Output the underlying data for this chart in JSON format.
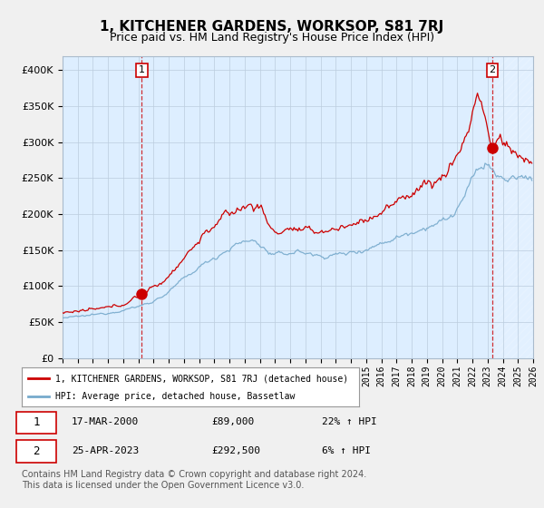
{
  "title": "1, KITCHENER GARDENS, WORKSOP, S81 7RJ",
  "subtitle": "Price paid vs. HM Land Registry's House Price Index (HPI)",
  "ylim": [
    0,
    420000
  ],
  "xlim_start": 1995.0,
  "xlim_end": 2026.0,
  "red_line_color": "#cc0000",
  "blue_line_color": "#77aacc",
  "grid_color": "#bbccdd",
  "background_color": "#f0f0f0",
  "plot_bg_color": "#ddeeff",
  "legend_label_red": "1, KITCHENER GARDENS, WORKSOP, S81 7RJ (detached house)",
  "legend_label_blue": "HPI: Average price, detached house, Bassetlaw",
  "transaction1_date": "17-MAR-2000",
  "transaction1_price": "£89,000",
  "transaction1_hpi": "22% ↑ HPI",
  "transaction1_x": 2000.21,
  "transaction1_y": 89000,
  "transaction2_date": "25-APR-2023",
  "transaction2_price": "£292,500",
  "transaction2_hpi": "6% ↑ HPI",
  "transaction2_x": 2023.32,
  "transaction2_y": 292500,
  "footer": "Contains HM Land Registry data © Crown copyright and database right 2024.\nThis data is licensed under the Open Government Licence v3.0.",
  "title_fontsize": 11,
  "subtitle_fontsize": 9,
  "tick_fontsize": 7,
  "footer_fontsize": 7
}
